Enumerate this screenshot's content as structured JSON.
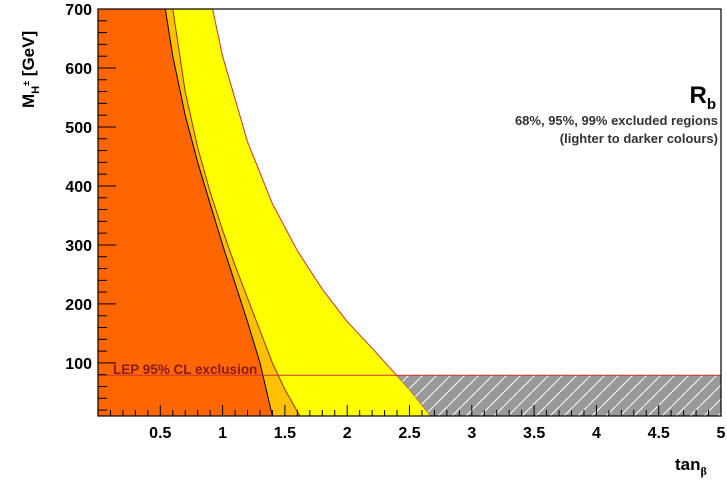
{
  "chart_data": {
    "type": "area",
    "title": "",
    "x_axis": {
      "label": "tan",
      "label_sub": "β",
      "range": [
        0,
        5
      ],
      "ticks": [
        0.5,
        1,
        1.5,
        2,
        2.5,
        3,
        3.5,
        4,
        4.5,
        5
      ],
      "tick_labels": [
        "0.5",
        "1",
        "1.5",
        "2",
        "2.5",
        "3",
        "3.5",
        "4",
        "4.5",
        "5"
      ]
    },
    "y_axis": {
      "label_main": "M",
      "label_sub": "H",
      "label_sup": "±",
      "label_unit": " [GeV]",
      "range": [
        10,
        700
      ],
      "ticks": [
        100,
        200,
        300,
        400,
        500,
        600,
        700
      ],
      "tick_labels": [
        "100",
        "200",
        "300",
        "400",
        "500",
        "600",
        "700"
      ]
    },
    "legend": {
      "title_main": "R",
      "title_sub": "b",
      "line1": "68%, 95%, 99% excluded regions",
      "line2": "(lighter to darker colours)",
      "placement": "top-right"
    },
    "series": [
      {
        "name": "68%",
        "color": "#ffff00",
        "boundary": [
          [
            0.92,
            700
          ],
          [
            1.0,
            620
          ],
          [
            1.2,
            475
          ],
          [
            1.4,
            370
          ],
          [
            1.6,
            290
          ],
          [
            1.8,
            225
          ],
          [
            2.0,
            170
          ],
          [
            2.2,
            125
          ],
          [
            2.35,
            90
          ],
          [
            2.5,
            55
          ],
          [
            2.67,
            10
          ]
        ]
      },
      {
        "name": "95%",
        "color": "#ffc000",
        "boundary": [
          [
            0.6,
            700
          ],
          [
            0.7,
            560
          ],
          [
            0.8,
            465
          ],
          [
            0.9,
            390
          ],
          [
            1.0,
            325
          ],
          [
            1.1,
            265
          ],
          [
            1.2,
            210
          ],
          [
            1.3,
            155
          ],
          [
            1.4,
            100
          ],
          [
            1.5,
            55
          ],
          [
            1.62,
            10
          ]
        ]
      },
      {
        "name": "99%",
        "color": "#ff6600",
        "boundary": [
          [
            0.54,
            700
          ],
          [
            0.6,
            620
          ],
          [
            0.7,
            520
          ],
          [
            0.8,
            440
          ],
          [
            0.9,
            370
          ],
          [
            1.0,
            300
          ],
          [
            1.1,
            235
          ],
          [
            1.2,
            170
          ],
          [
            1.3,
            100
          ],
          [
            1.4,
            10
          ]
        ]
      }
    ],
    "lep_exclusion": {
      "label": "LEP 95% CL exclusion",
      "mass_limit": 79,
      "x_from": 0,
      "x_to": 5,
      "line_color": "#cc3333",
      "hatch_fill": "#999999"
    }
  }
}
